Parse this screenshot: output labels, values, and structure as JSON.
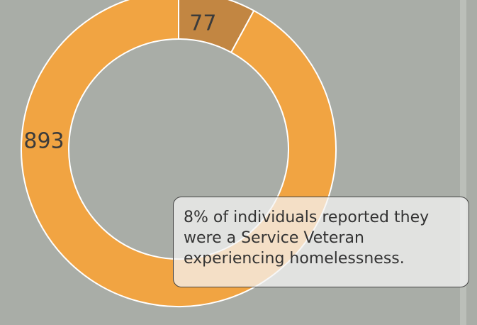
{
  "chart_data": {
    "type": "pie",
    "variant": "donut",
    "slices": [
      {
        "label": "77",
        "value": 77,
        "color": "#c28642"
      },
      {
        "label": "893",
        "value": 893,
        "color": "#f1a442"
      }
    ],
    "title": "",
    "start_angle_deg": 0
  },
  "callout": {
    "text": "8% of individuals reported they were a Service Veteran experiencing homelessness."
  },
  "colors": {
    "background": "#a9ada7",
    "segment_veteran": "#c28642",
    "segment_other": "#f1a442",
    "stroke": "#ffffff"
  }
}
